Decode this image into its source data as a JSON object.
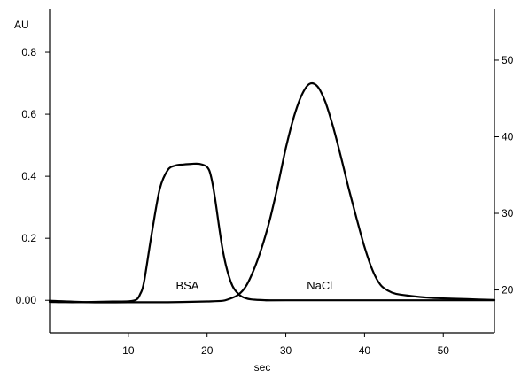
{
  "chart_data": {
    "type": "line",
    "xlabel": "sec",
    "ylabel_left": "AU",
    "xlim": [
      0,
      56.5
    ],
    "ylim_left": [
      -0.105,
      0.94
    ],
    "ylim_right": [
      14.4,
      56.7
    ],
    "x_ticks": [
      10,
      20,
      30,
      40,
      50
    ],
    "y_left_ticks": [
      "0.00",
      "0.2",
      "0.4",
      "0.6",
      "0.8"
    ],
    "y_right_ticks": [
      20,
      30,
      40,
      50
    ],
    "grid": false,
    "series": [
      {
        "name": "BSA",
        "axis": "left",
        "x": [
          0,
          2,
          4,
          8,
          10,
          11,
          11.5,
          12,
          13,
          14,
          15,
          16,
          17,
          18,
          19,
          20,
          20.5,
          21,
          22,
          23,
          24,
          25,
          26,
          28,
          30,
          56.5
        ],
        "y": [
          -0.005,
          -0.006,
          -0.006,
          -0.004,
          -0.003,
          0.002,
          0.02,
          0.06,
          0.22,
          0.36,
          0.42,
          0.435,
          0.438,
          0.44,
          0.44,
          0.43,
          0.4,
          0.33,
          0.16,
          0.06,
          0.02,
          0.006,
          0.002,
          0.0,
          0.0,
          0.0
        ]
      },
      {
        "name": "NaCl",
        "axis": "right",
        "x": [
          0,
          5,
          10,
          15,
          20,
          22,
          23,
          24,
          25,
          26,
          27,
          28,
          29,
          30,
          31,
          32,
          33,
          34,
          35,
          36,
          37,
          38,
          39,
          40,
          41,
          42,
          43,
          44,
          46,
          48,
          50,
          53,
          56.5
        ],
        "y": [
          18.6,
          18.4,
          18.4,
          18.4,
          18.5,
          18.6,
          18.9,
          19.4,
          20.6,
          22.8,
          25.7,
          29.3,
          33.7,
          38.5,
          42.5,
          45.4,
          46.9,
          46.6,
          44.6,
          41.3,
          37.4,
          33.2,
          29.3,
          25.6,
          22.6,
          20.7,
          19.9,
          19.5,
          19.2,
          19.0,
          18.9,
          18.8,
          18.7
        ]
      }
    ],
    "annotations": [
      {
        "text": "BSA",
        "x": 17.5,
        "y_left": 0.035
      },
      {
        "text": "NaCl",
        "x": 34.3,
        "y_left": 0.035
      }
    ]
  }
}
